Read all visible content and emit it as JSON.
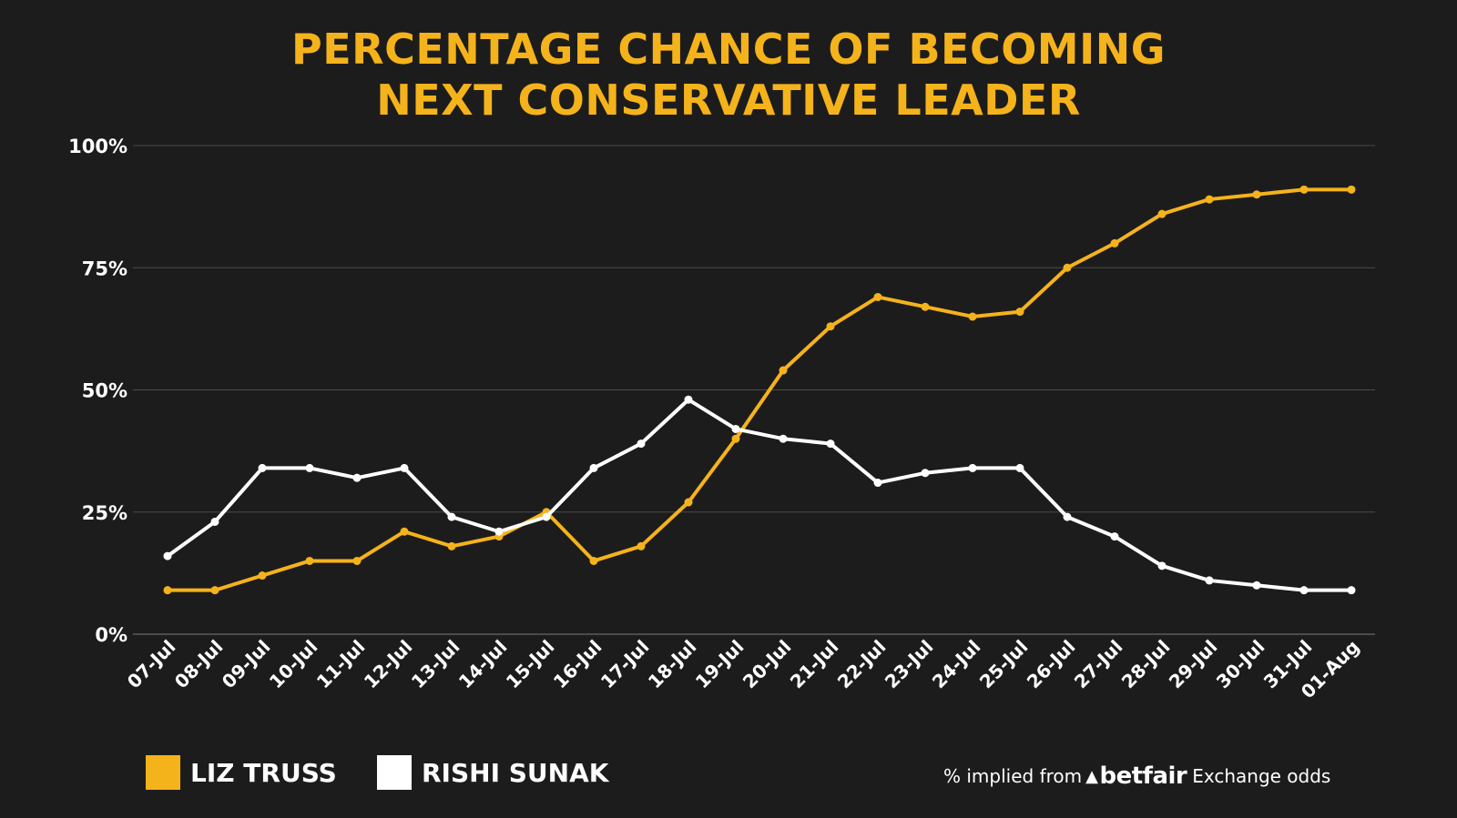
{
  "title_line1": "PERCENTAGE CHANCE OF BECOMING",
  "title_line2": "NEXT CONSERVATIVE LEADER",
  "source": {
    "prefix": "% implied from",
    "brand": "betfair",
    "suffix": "Exchange odds"
  },
  "chart_data": {
    "type": "line",
    "title": "PERCENTAGE CHANCE OF BECOMING NEXT CONSERVATIVE LEADER",
    "categories": [
      "07-Jul",
      "08-Jul",
      "09-Jul",
      "10-Jul",
      "11-Jul",
      "12-Jul",
      "13-Jul",
      "14-Jul",
      "15-Jul",
      "16-Jul",
      "17-Jul",
      "18-Jul",
      "19-Jul",
      "20-Jul",
      "21-Jul",
      "22-Jul",
      "23-Jul",
      "24-Jul",
      "25-Jul",
      "26-Jul",
      "27-Jul",
      "28-Jul",
      "29-Jul",
      "30-Jul",
      "31-Jul",
      "01-Aug"
    ],
    "y_ticks": [
      "0%",
      "25%",
      "50%",
      "75%",
      "100%"
    ],
    "ylim": [
      0,
      100
    ],
    "grid": true,
    "legend_position": "bottom-left",
    "series": [
      {
        "name": "LIZ TRUSS",
        "color": "#f5b31b",
        "values": [
          9,
          9,
          12,
          15,
          15,
          21,
          18,
          20,
          25,
          15,
          18,
          27,
          40,
          54,
          63,
          69,
          67,
          65,
          66,
          75,
          80,
          86,
          89,
          90,
          91,
          91
        ]
      },
      {
        "name": "RISHI SUNAK",
        "color": "#ffffff",
        "values": [
          16,
          23,
          34,
          34,
          32,
          34,
          24,
          21,
          24,
          34,
          39,
          48,
          42,
          40,
          39,
          31,
          33,
          34,
          34,
          24,
          20,
          14,
          11,
          10,
          9,
          9
        ]
      }
    ]
  },
  "colors": {
    "background": "#1d1c1d",
    "accent": "#f5b31b",
    "grid": "#4a4a4a"
  }
}
